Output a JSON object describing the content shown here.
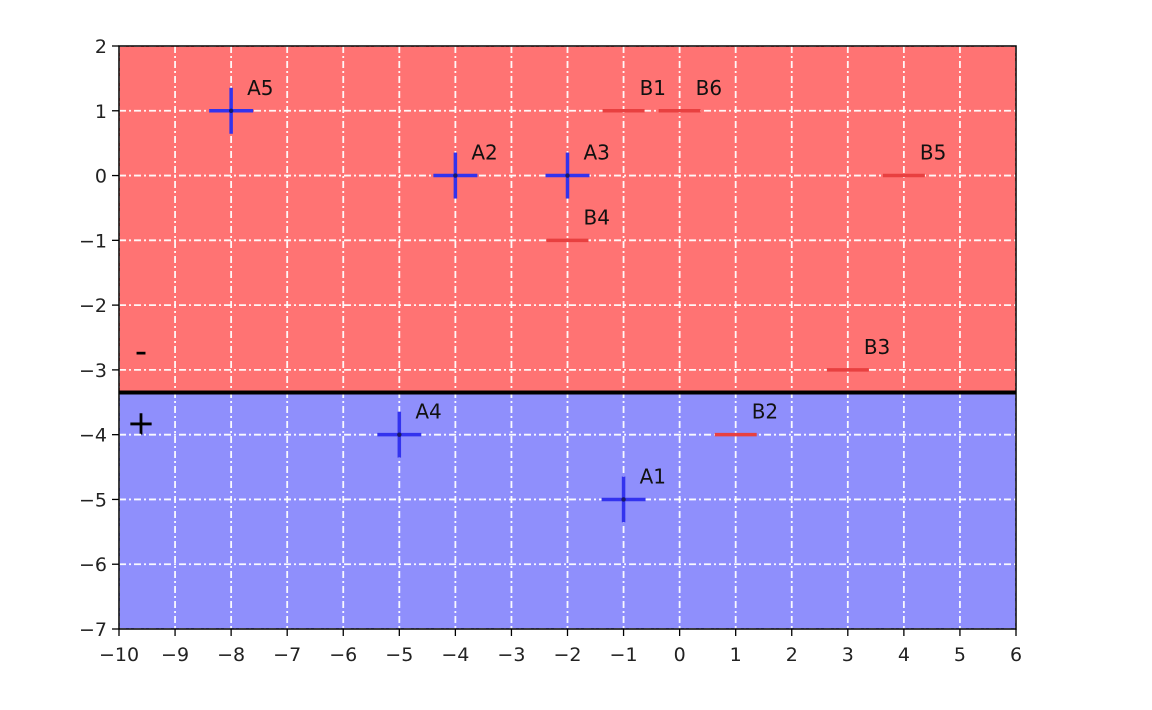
{
  "chart_data": {
    "type": "scatter",
    "xlim": [
      -10,
      6
    ],
    "ylim": [
      -7,
      2
    ],
    "x_ticks": [
      -10,
      -9,
      -8,
      -7,
      -6,
      -5,
      -4,
      -3,
      -2,
      -1,
      0,
      1,
      2,
      3,
      4,
      5,
      6
    ],
    "y_ticks": [
      2,
      1,
      0,
      -1,
      -2,
      -3,
      -4,
      -5,
      -6,
      -7
    ],
    "grid": true,
    "decision_boundary_y": -3.35,
    "regions": [
      {
        "label": "-",
        "color": "#ff7373",
        "side": "above"
      },
      {
        "label": "+",
        "color": "#8f8ffc",
        "side": "below"
      }
    ],
    "series": [
      {
        "marker": "plus",
        "color": "#3333ee",
        "points": [
          {
            "label": "A1",
            "x": -1,
            "y": -5
          },
          {
            "label": "A2",
            "x": -4,
            "y": 0
          },
          {
            "label": "A3",
            "x": -2,
            "y": 0
          },
          {
            "label": "A4",
            "x": -5,
            "y": -4
          },
          {
            "label": "A5",
            "x": -8,
            "y": 1
          }
        ]
      },
      {
        "marker": "minus",
        "color": "#e84040",
        "points": [
          {
            "label": "B1",
            "x": -1,
            "y": 1
          },
          {
            "label": "B2",
            "x": 1,
            "y": -4
          },
          {
            "label": "B3",
            "x": 3,
            "y": -3
          },
          {
            "label": "B4",
            "x": -2,
            "y": -1
          },
          {
            "label": "B5",
            "x": 4,
            "y": 0
          },
          {
            "label": "B6",
            "x": 0,
            "y": 1
          }
        ]
      }
    ]
  }
}
